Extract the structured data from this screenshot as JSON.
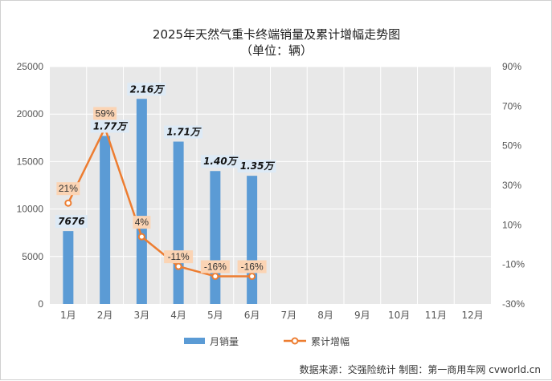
{
  "chart_data": {
    "type": "bar",
    "title": "2025年天然气重卡终端销量及累计增幅走势图",
    "subtitle": "（单位：辆）",
    "categories": [
      "1月",
      "2月",
      "3月",
      "4月",
      "5月",
      "6月",
      "7月",
      "8月",
      "9月",
      "10月",
      "11月",
      "12月"
    ],
    "series": [
      {
        "name": "月销量",
        "type": "bar",
        "axis": "left",
        "color": "#5b9bd5",
        "values": [
          7676,
          17700,
          21600,
          17100,
          14000,
          13500,
          null,
          null,
          null,
          null,
          null,
          null
        ],
        "labels": [
          "7676",
          "1.77万",
          "2.16万",
          "1.71万",
          "1.40万",
          "1.35万",
          null,
          null,
          null,
          null,
          null,
          null
        ]
      },
      {
        "name": "累计增幅",
        "type": "line",
        "axis": "right",
        "color": "#ed7d31",
        "values": [
          21,
          59,
          4,
          -11,
          -16,
          -16,
          null,
          null,
          null,
          null,
          null,
          null
        ],
        "labels": [
          "21%",
          "59%",
          "4%",
          "-11%",
          "-16%",
          "-16%",
          null,
          null,
          null,
          null,
          null,
          null
        ]
      }
    ],
    "y_left": {
      "min": 0,
      "max": 25000,
      "ticks": [
        "0",
        "5000",
        "10000",
        "15000",
        "20000",
        "25000"
      ]
    },
    "y_right": {
      "min": -30,
      "max": 90,
      "ticks": [
        "-30%",
        "-10%",
        "10%",
        "30%",
        "50%",
        "70%",
        "90%"
      ]
    },
    "grid": true,
    "legend_position": "bottom",
    "source": "数据来源：交强险统计  制图：第一商用车网 cvworld.cn",
    "colors": {
      "plot_bg": "#e8e8e8",
      "grid": "#ffffff",
      "label_box_bar": "#ddeaf6",
      "label_box_line": "#fbd4b4"
    }
  }
}
